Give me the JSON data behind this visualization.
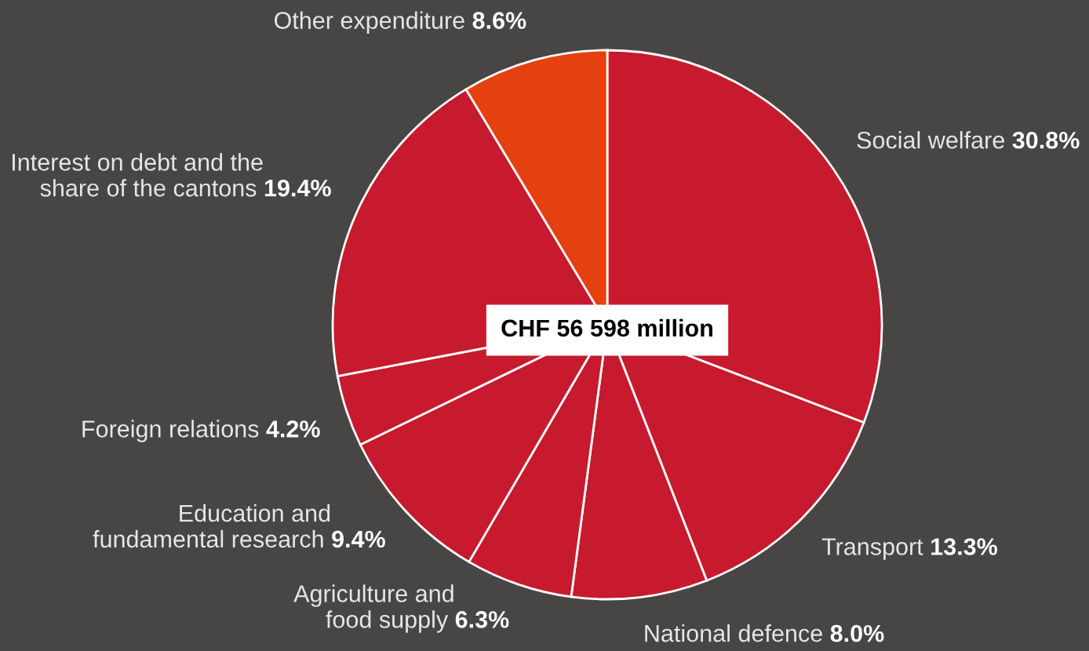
{
  "chart_data": {
    "type": "pie",
    "categories": [
      "Social welfare",
      "Transport",
      "National defence",
      "Agriculture and\nfood supply",
      "Education and\nfundamental research",
      "Foreign relations",
      "Interest on debt and the\nshare of the cantons",
      "Other expenditure"
    ],
    "values": [
      30.8,
      13.3,
      8.0,
      6.3,
      9.4,
      4.2,
      19.4,
      8.6
    ],
    "value_labels": [
      "30.8%",
      "13.3%",
      "8.0%",
      "6.3%",
      "9.4%",
      "4.2%",
      "19.4%",
      "8.6%"
    ],
    "colors": [
      "#c71a2e",
      "#c71a2e",
      "#c71a2e",
      "#c71a2e",
      "#c71a2e",
      "#c71a2e",
      "#c71a2e",
      "#e5400f"
    ],
    "annotations": [
      "CHF 56 598 million"
    ]
  }
}
